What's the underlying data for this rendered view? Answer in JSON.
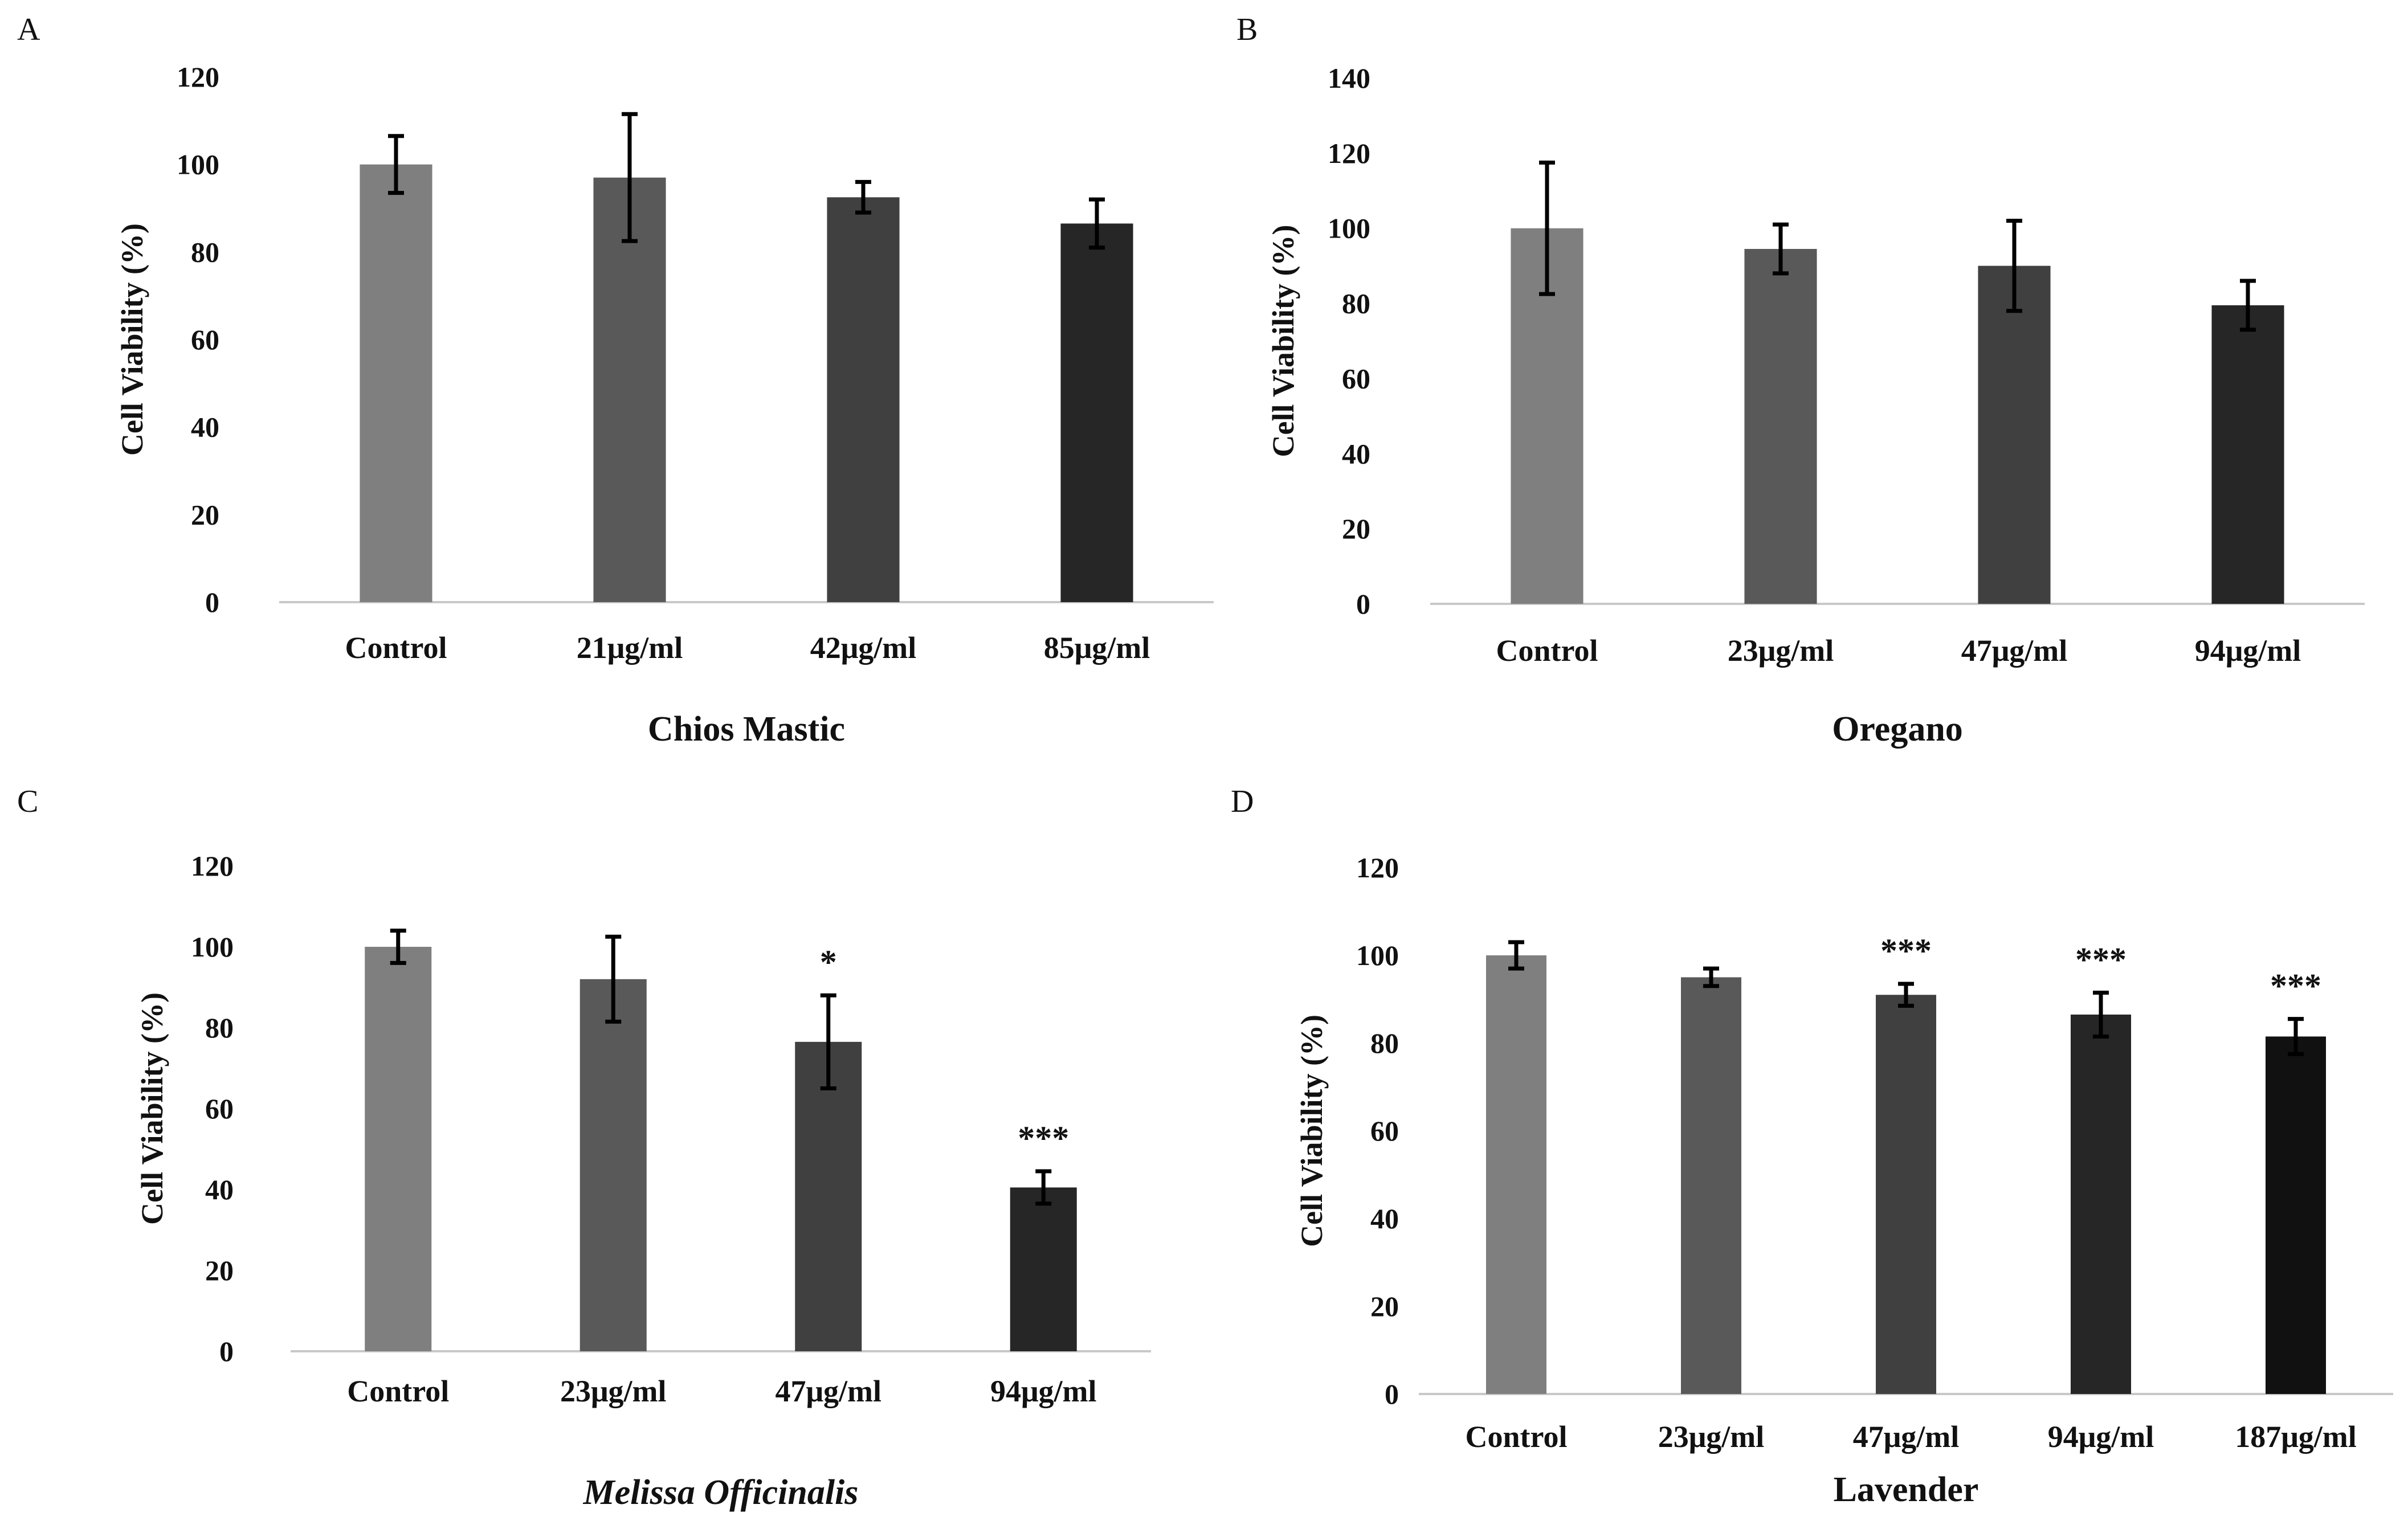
{
  "chart_data": [
    {
      "type": "bar",
      "panel": "A",
      "xlabel": "Chios Mastic",
      "xlabel_italic": false,
      "ylabel": "Cell Viability (%)",
      "ylim": [
        0,
        120
      ],
      "yticks": [
        0,
        20,
        40,
        60,
        80,
        100,
        120
      ],
      "categories": [
        "Control",
        "21μg/ml",
        "42μg/ml",
        "85μg/ml"
      ],
      "values": [
        100,
        97,
        92.5,
        86.5
      ],
      "errors": [
        6.5,
        14.5,
        3.5,
        5.5
      ],
      "annotations": [
        "",
        "",
        "",
        ""
      ],
      "bar_colors": [
        "#7f7f7f",
        "#595959",
        "#404040",
        "#262626"
      ],
      "grid": false
    },
    {
      "type": "bar",
      "panel": "B",
      "xlabel": "Oregano",
      "xlabel_italic": false,
      "ylabel": "Cell Viability (%)",
      "ylim": [
        0,
        140
      ],
      "yticks": [
        0,
        20,
        40,
        60,
        80,
        100,
        120,
        140
      ],
      "categories": [
        "Control",
        "23μg/ml",
        "47μg/ml",
        "94μg/ml"
      ],
      "values": [
        100,
        94.5,
        90,
        79.5
      ],
      "errors": [
        17.5,
        6.5,
        12,
        6.5
      ],
      "annotations": [
        "",
        "",
        "",
        ""
      ],
      "bar_colors": [
        "#7f7f7f",
        "#595959",
        "#404040",
        "#262626"
      ],
      "grid": false
    },
    {
      "type": "bar",
      "panel": "C",
      "xlabel": "Melissa Officinalis",
      "xlabel_italic": true,
      "ylabel": "Cell Viability (%)",
      "ylim": [
        0,
        120
      ],
      "yticks": [
        0,
        20,
        40,
        60,
        80,
        100,
        120
      ],
      "categories": [
        "Control",
        "23μg/ml",
        "47μg/ml",
        "94μg/ml"
      ],
      "values": [
        100,
        92,
        76.5,
        40.5
      ],
      "errors": [
        4,
        10.5,
        11.5,
        4
      ],
      "annotations": [
        "",
        "",
        "*",
        "***"
      ],
      "bar_colors": [
        "#7f7f7f",
        "#595959",
        "#404040",
        "#262626"
      ],
      "grid": false
    },
    {
      "type": "bar",
      "panel": "D",
      "xlabel": "Lavender",
      "xlabel_italic": false,
      "ylabel": "Cell Viability (%)",
      "ylim": [
        0,
        120
      ],
      "yticks": [
        0,
        20,
        40,
        60,
        80,
        100,
        120
      ],
      "categories": [
        "Control",
        "23μg/ml",
        "47μg/ml",
        "94μg/ml",
        "187μg/ml"
      ],
      "values": [
        100,
        95,
        91,
        86.5,
        81.5
      ],
      "errors": [
        3,
        2,
        2.5,
        5,
        4
      ],
      "annotations": [
        "",
        "",
        "***",
        "***",
        "***"
      ],
      "bar_colors": [
        "#7f7f7f",
        "#595959",
        "#404040",
        "#262626",
        "#111111"
      ],
      "grid": false
    }
  ]
}
